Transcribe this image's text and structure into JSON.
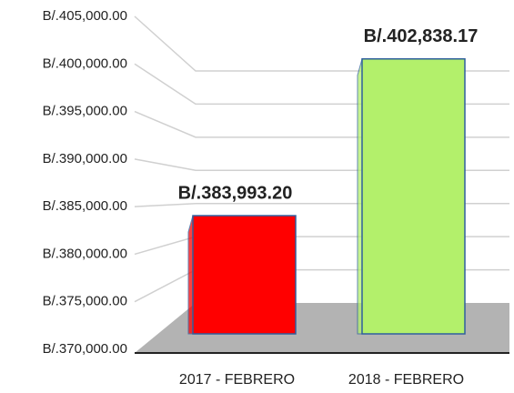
{
  "chart_data": {
    "type": "bar3d",
    "categories": [
      "2017 - FEBRERO",
      "2018 - FEBRERO"
    ],
    "values": [
      383993.2,
      402838.17
    ],
    "value_labels": [
      "B/.383,993.20",
      "B/.402,838.17"
    ],
    "colors": [
      "#ff0000",
      "#b3f06b"
    ],
    "ylim": [
      370000,
      405000
    ],
    "yticks": [
      {
        "value": 370000,
        "label": "B/.370,000.00"
      },
      {
        "value": 375000,
        "label": "B/.375,000.00"
      },
      {
        "value": 380000,
        "label": "B/.380,000.00"
      },
      {
        "value": 385000,
        "label": "B/.385,000.00"
      },
      {
        "value": 390000,
        "label": "B/.390,000.00"
      },
      {
        "value": 395000,
        "label": "B/.395,000.00"
      },
      {
        "value": 400000,
        "label": "B/.400,000.00"
      },
      {
        "value": 405000,
        "label": "B/.405,000.00"
      }
    ],
    "grid": true
  }
}
